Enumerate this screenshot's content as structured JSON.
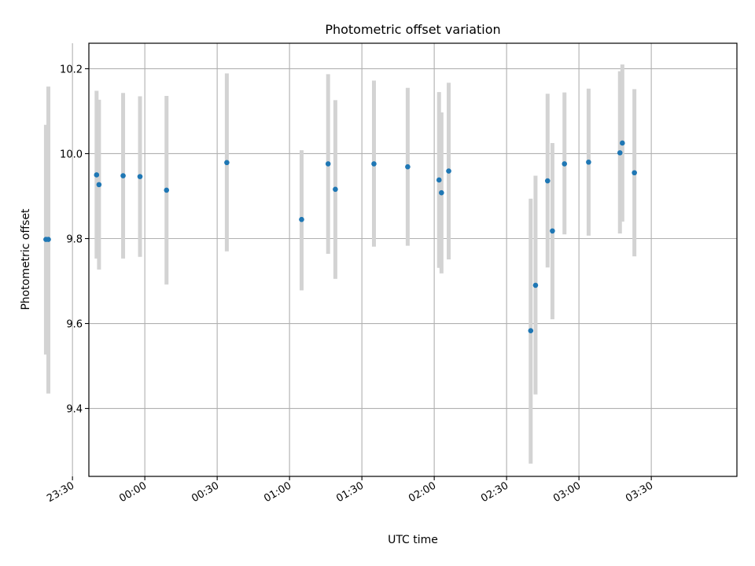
{
  "chart_data": {
    "type": "scatter",
    "title": "Photometric offset variation",
    "xlabel": "UTC time",
    "ylabel": "Photometric offset",
    "x_tick_labels": [
      "23:30",
      "00:00",
      "00:30",
      "01:00",
      "01:30",
      "02:00",
      "02:30",
      "03:00",
      "03:30"
    ],
    "y_tick_labels": [
      "9.4",
      "9.6",
      "9.8",
      "10.0",
      "10.2"
    ],
    "y_ticks": [
      9.4,
      9.6,
      9.8,
      10.0,
      10.2
    ],
    "xlim_minutes": [
      -23.2,
      245.5
    ],
    "ylim": [
      9.24,
      10.26
    ],
    "grid": true,
    "marker_color": "#1f77b4",
    "errorbar_color": "#d3d3d3",
    "points": [
      {
        "x": "23:19",
        "y": 9.798,
        "ylow": 9.527,
        "yhigh": 10.068
      },
      {
        "x": "23:20",
        "y": 9.798,
        "ylow": 9.435,
        "yhigh": 10.158
      },
      {
        "x": "23:40",
        "y": 9.95,
        "ylow": 9.753,
        "yhigh": 10.148
      },
      {
        "x": "23:41",
        "y": 9.927,
        "ylow": 9.727,
        "yhigh": 10.127
      },
      {
        "x": "23:51",
        "y": 9.948,
        "ylow": 9.753,
        "yhigh": 10.143
      },
      {
        "x": "23:58",
        "y": 9.946,
        "ylow": 9.757,
        "yhigh": 10.135
      },
      {
        "x": "00:09",
        "y": 9.914,
        "ylow": 9.692,
        "yhigh": 10.136
      },
      {
        "x": "00:34",
        "y": 9.979,
        "ylow": 9.77,
        "yhigh": 10.189
      },
      {
        "x": "01:05",
        "y": 9.845,
        "ylow": 9.678,
        "yhigh": 10.008
      },
      {
        "x": "01:16",
        "y": 9.976,
        "ylow": 9.764,
        "yhigh": 10.187
      },
      {
        "x": "01:19",
        "y": 9.916,
        "ylow": 9.705,
        "yhigh": 10.126
      },
      {
        "x": "01:35",
        "y": 9.976,
        "ylow": 9.781,
        "yhigh": 10.172
      },
      {
        "x": "01:49",
        "y": 9.969,
        "ylow": 9.783,
        "yhigh": 10.155
      },
      {
        "x": "02:02",
        "y": 9.938,
        "ylow": 9.731,
        "yhigh": 10.145
      },
      {
        "x": "02:03",
        "y": 9.908,
        "ylow": 9.718,
        "yhigh": 10.097
      },
      {
        "x": "02:06",
        "y": 9.959,
        "ylow": 9.751,
        "yhigh": 10.167
      },
      {
        "x": "02:40",
        "y": 9.583,
        "ylow": 9.27,
        "yhigh": 9.894
      },
      {
        "x": "02:42",
        "y": 9.69,
        "ylow": 9.433,
        "yhigh": 9.948
      },
      {
        "x": "02:47",
        "y": 9.936,
        "ylow": 9.732,
        "yhigh": 10.141
      },
      {
        "x": "02:49",
        "y": 9.818,
        "ylow": 9.61,
        "yhigh": 10.025
      },
      {
        "x": "02:54",
        "y": 9.976,
        "ylow": 9.81,
        "yhigh": 10.144
      },
      {
        "x": "03:04",
        "y": 9.98,
        "ylow": 9.807,
        "yhigh": 10.153
      },
      {
        "x": "03:17",
        "y": 10.002,
        "ylow": 9.812,
        "yhigh": 10.194
      },
      {
        "x": "03:18",
        "y": 10.025,
        "ylow": 9.84,
        "yhigh": 10.21
      },
      {
        "x": "03:23",
        "y": 9.955,
        "ylow": 9.758,
        "yhigh": 10.152
      }
    ]
  }
}
